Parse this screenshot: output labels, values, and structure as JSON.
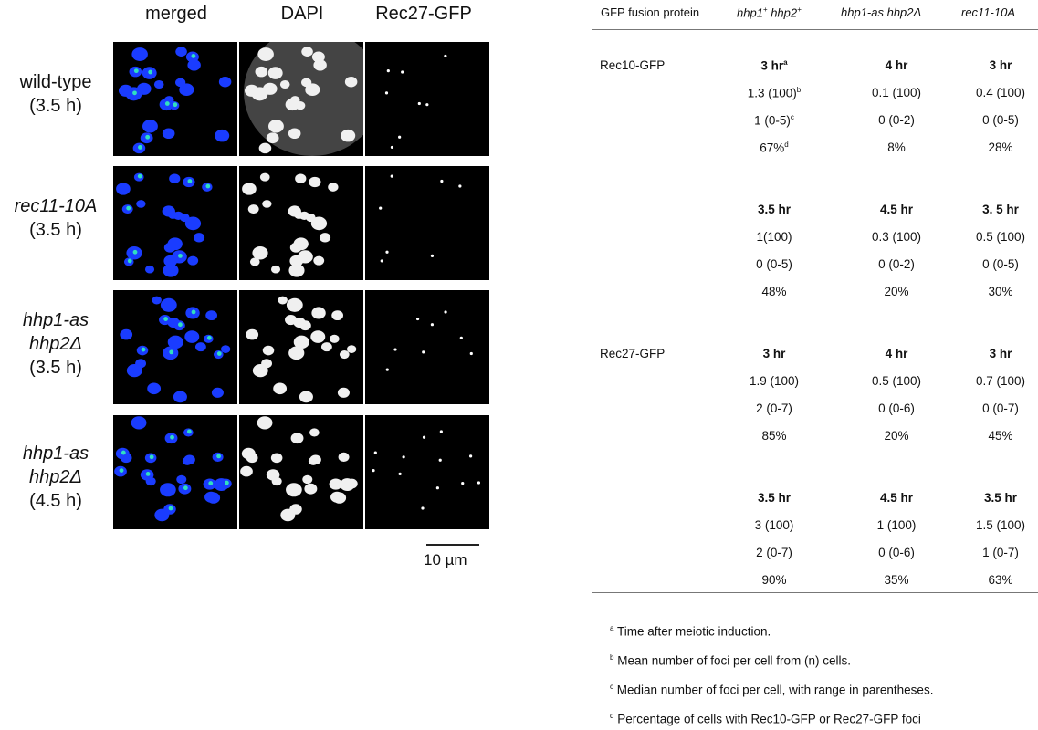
{
  "figure": {
    "columns": [
      "merged",
      "DAPI",
      "Rec27-GFP"
    ],
    "rows": [
      {
        "line1": "wild-type",
        "line2": "(3.5 h)",
        "line3": ""
      },
      {
        "line1": "rec11-10A",
        "line2": "(3.5 h)",
        "line3": ""
      },
      {
        "line1": "hhp1-as",
        "line2": "hhp2Δ",
        "line3": "(3.5 h)"
      },
      {
        "line1": "hhp1-as",
        "line2": "hhp2Δ",
        "line3": "(4.5 h)"
      }
    ],
    "scale_bar": "10 µm",
    "colors": {
      "nuclei": "#1a3cff",
      "foci": "#30e0c0",
      "dapi": "#f0f0f0",
      "background": "#000000"
    }
  },
  "table": {
    "header": {
      "c0": "GFP fusion protein",
      "c1_a": "hhp1",
      "c1_sup_a": "+",
      "c1_b": " hhp2",
      "c1_sup_b": "+",
      "c2": "hhp1-as hhp2Δ",
      "c3": "rec11-10A"
    },
    "sections": [
      {
        "protein": "Rec10-GFP",
        "blocks": [
          {
            "time": [
              "3 hr",
              "4 hr",
              "3 hr"
            ],
            "time_sup": "a",
            "mean": [
              "1.3 (100)",
              "0.1 (100)",
              "0.4 (100)"
            ],
            "mean_sup": "b",
            "median": [
              "1 (0-5)",
              "0 (0-2)",
              "0 (0-5)"
            ],
            "median_sup": "c",
            "pct": [
              "67%",
              "8%",
              "28%"
            ],
            "pct_sup": "d"
          },
          {
            "time": [
              "3.5 hr",
              "4.5 hr",
              "3. 5 hr"
            ],
            "mean": [
              "1(100)",
              "0.3 (100)",
              "0.5 (100)"
            ],
            "median": [
              "0 (0-5)",
              "0 (0-2)",
              "0 (0-5)"
            ],
            "pct": [
              "48%",
              "20%",
              "30%"
            ]
          }
        ]
      },
      {
        "protein": "Rec27-GFP",
        "blocks": [
          {
            "time": [
              "3 hr",
              "4 hr",
              "3 hr"
            ],
            "mean": [
              "1.9 (100)",
              "0.5 (100)",
              "0.7 (100)"
            ],
            "median": [
              "2 (0-7)",
              "0 (0-6)",
              "0 (0-7)"
            ],
            "pct": [
              "85%",
              "20%",
              "45%"
            ]
          },
          {
            "time": [
              "3.5 hr",
              "4.5 hr",
              "3.5 hr"
            ],
            "mean": [
              "3 (100)",
              "1 (100)",
              "1.5 (100)"
            ],
            "median": [
              "2 (0-7)",
              "0 (0-6)",
              "1 (0-7)"
            ],
            "pct": [
              "90%",
              "35%",
              "63%"
            ]
          }
        ]
      }
    ],
    "footnotes": [
      {
        "mark": "a",
        "text": "Time after meiotic induction."
      },
      {
        "mark": "b",
        "text": "Mean number of foci per cell from (n) cells."
      },
      {
        "mark": "c",
        "text": "Median number of foci per cell, with range in parentheses."
      },
      {
        "mark": "d",
        "text": "Percentage of cells with Rec10-GFP or Rec27-GFP foci"
      }
    ]
  }
}
